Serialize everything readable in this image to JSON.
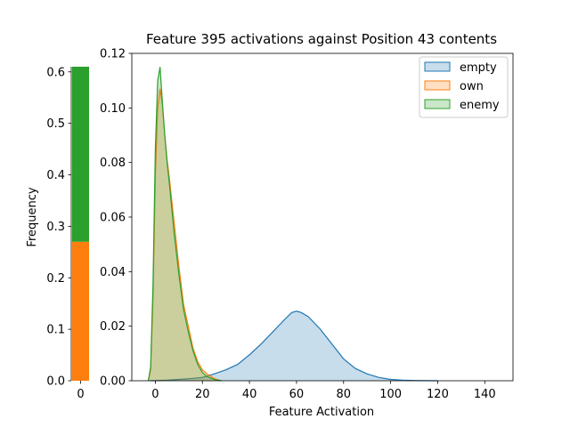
{
  "chart_data": [
    {
      "type": "bar",
      "stacked": true,
      "categories": [
        "0"
      ],
      "series": [
        {
          "name": "own",
          "values": [
            0.27
          ],
          "color": "#ff7f0e"
        },
        {
          "name": "enemy",
          "values": [
            0.34
          ],
          "color": "#2ca02c"
        }
      ],
      "ylabel": "Frequency",
      "ylim": [
        0,
        0.61
      ],
      "yticks": [
        "0.0",
        "0.1",
        "0.2",
        "0.3",
        "0.4",
        "0.5",
        "0.6"
      ],
      "xticks": [
        "0"
      ],
      "grid": false
    },
    {
      "type": "area",
      "title": "Feature 395 activations against Position 43 contents",
      "xlabel": "Feature Activation",
      "ylabel": "",
      "xlim": [
        -10,
        152
      ],
      "ylim": [
        0,
        0.12
      ],
      "xticks": [
        "0",
        "20",
        "40",
        "60",
        "80",
        "100",
        "120",
        "140"
      ],
      "yticks": [
        "0.00",
        "0.02",
        "0.04",
        "0.06",
        "0.08",
        "0.10",
        "0.12"
      ],
      "legend_position": "top-right",
      "grid": false,
      "series": [
        {
          "name": "empty",
          "color": "#1f77b4",
          "x": [
            -2,
            5,
            10,
            15,
            20,
            25,
            30,
            35,
            40,
            45,
            50,
            55,
            58,
            60,
            62,
            65,
            70,
            75,
            80,
            85,
            90,
            95,
            100,
            105,
            110,
            115,
            120
          ],
          "y": [
            0,
            0.0002,
            0.0005,
            0.0008,
            0.0012,
            0.0025,
            0.004,
            0.006,
            0.0095,
            0.0135,
            0.018,
            0.0225,
            0.025,
            0.0255,
            0.025,
            0.0235,
            0.019,
            0.0135,
            0.008,
            0.0045,
            0.0025,
            0.0012,
            0.0005,
            0.0002,
            0.0001,
            3e-05,
            0
          ]
        },
        {
          "name": "own",
          "color": "#ff7f0e",
          "x": [
            -3,
            -2,
            -1,
            0,
            1,
            2,
            3,
            4,
            5,
            6,
            7,
            8,
            10,
            12,
            14,
            16,
            18,
            20,
            22,
            25,
            28
          ],
          "y": [
            0,
            0.004,
            0.03,
            0.075,
            0.1,
            0.107,
            0.101,
            0.09,
            0.081,
            0.074,
            0.066,
            0.058,
            0.042,
            0.028,
            0.02,
            0.012,
            0.007,
            0.004,
            0.0025,
            0.0008,
            0
          ]
        },
        {
          "name": "enemy",
          "color": "#2ca02c",
          "x": [
            -3,
            -2,
            -1,
            0,
            1,
            2,
            3,
            4,
            5,
            6,
            7,
            8,
            10,
            12,
            14,
            16,
            18,
            20,
            22,
            25,
            28
          ],
          "y": [
            0,
            0.005,
            0.035,
            0.085,
            0.11,
            0.115,
            0.102,
            0.09,
            0.08,
            0.072,
            0.063,
            0.054,
            0.039,
            0.026,
            0.018,
            0.011,
            0.006,
            0.003,
            0.0015,
            0.0005,
            0
          ]
        }
      ]
    }
  ]
}
